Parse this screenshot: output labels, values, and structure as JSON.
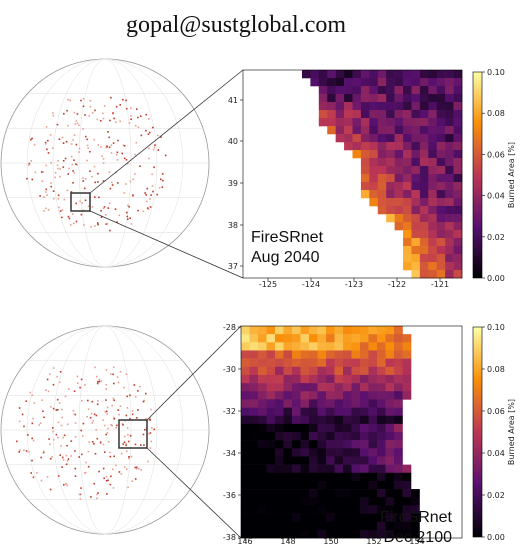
{
  "header": {
    "email": "gopal@sustglobal.com"
  },
  "panels": [
    {
      "model": "FireSRnet",
      "date": "Aug 2040",
      "yticks": [
        "41",
        "40",
        "39",
        "38",
        "37"
      ],
      "xticks": [
        "-125",
        "-124",
        "-123",
        "-122",
        "-121"
      ],
      "colorbar": {
        "label": "Burned Area [%]",
        "ticks": [
          "0.10",
          "0.08",
          "0.06",
          "0.04",
          "0.02",
          "0.00"
        ]
      }
    },
    {
      "model": "FireSRnet",
      "date": "Dec 2100",
      "yticks": [
        "-28",
        "-30",
        "-32",
        "-34",
        "-36",
        "-38"
      ],
      "xticks": [
        "146",
        "148",
        "150",
        "152",
        "154"
      ],
      "colorbar": {
        "label": "Burned Area [%]",
        "ticks": [
          "0.10",
          "0.08",
          "0.06",
          "0.04",
          "0.02",
          "0.00"
        ]
      }
    }
  ]
}
